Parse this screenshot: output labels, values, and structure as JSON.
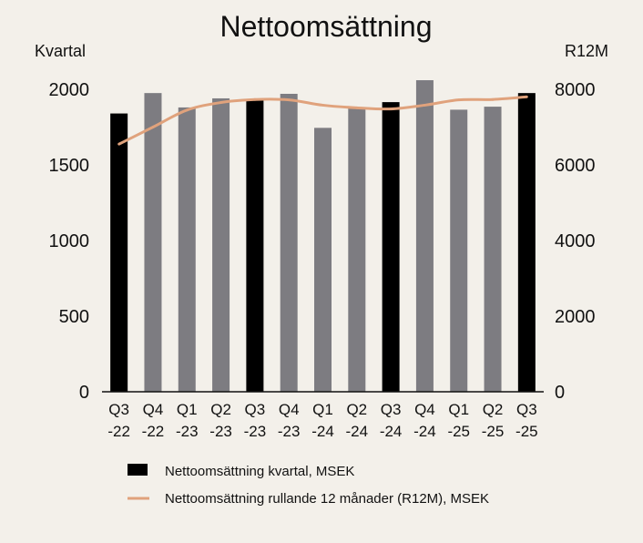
{
  "chart_data": {
    "type": "bar",
    "title": "Nettoomsättning",
    "y_left_label": "Kvartal",
    "y_right_label": "R12M",
    "categories": [
      [
        "Q3",
        "-22"
      ],
      [
        "Q4",
        "-22"
      ],
      [
        "Q1",
        "-23"
      ],
      [
        "Q2",
        "-23"
      ],
      [
        "Q3",
        "-23"
      ],
      [
        "Q4",
        "-23"
      ],
      [
        "Q1",
        "-24"
      ],
      [
        "Q2",
        "-24"
      ],
      [
        "Q3",
        "-24"
      ],
      [
        "Q4",
        "-24"
      ],
      [
        "Q1",
        "-25"
      ],
      [
        "Q2",
        "-25"
      ],
      [
        "Q3",
        "-25"
      ]
    ],
    "ylim_left": [
      0,
      2000
    ],
    "yticks_left": [
      0,
      500,
      1000,
      1500,
      2000
    ],
    "ylim_right": [
      0,
      8000
    ],
    "yticks_right": [
      0,
      2000,
      4000,
      6000,
      8000
    ],
    "series": [
      {
        "name": "Nettoomsättning kvartal, MSEK",
        "type": "bar",
        "axis": "left",
        "values": [
          1840,
          1975,
          1880,
          1940,
          1930,
          1970,
          1745,
          1875,
          1915,
          2060,
          1865,
          1885,
          1975
        ],
        "colors": [
          "#000000",
          "#7d7c81",
          "#7d7c81",
          "#7d7c81",
          "#000000",
          "#7d7c81",
          "#7d7c81",
          "#7d7c81",
          "#000000",
          "#7d7c81",
          "#7d7c81",
          "#7d7c81",
          "#000000"
        ]
      },
      {
        "name": "Nettoomsättning rullande 12 månader (R12M), MSEK",
        "type": "line",
        "axis": "right",
        "color": "#e0a27c",
        "values": [
          6550,
          7000,
          7450,
          7650,
          7730,
          7720,
          7580,
          7510,
          7480,
          7580,
          7720,
          7730,
          7800
        ]
      }
    ],
    "legend_position": "bottom",
    "grid": false
  }
}
